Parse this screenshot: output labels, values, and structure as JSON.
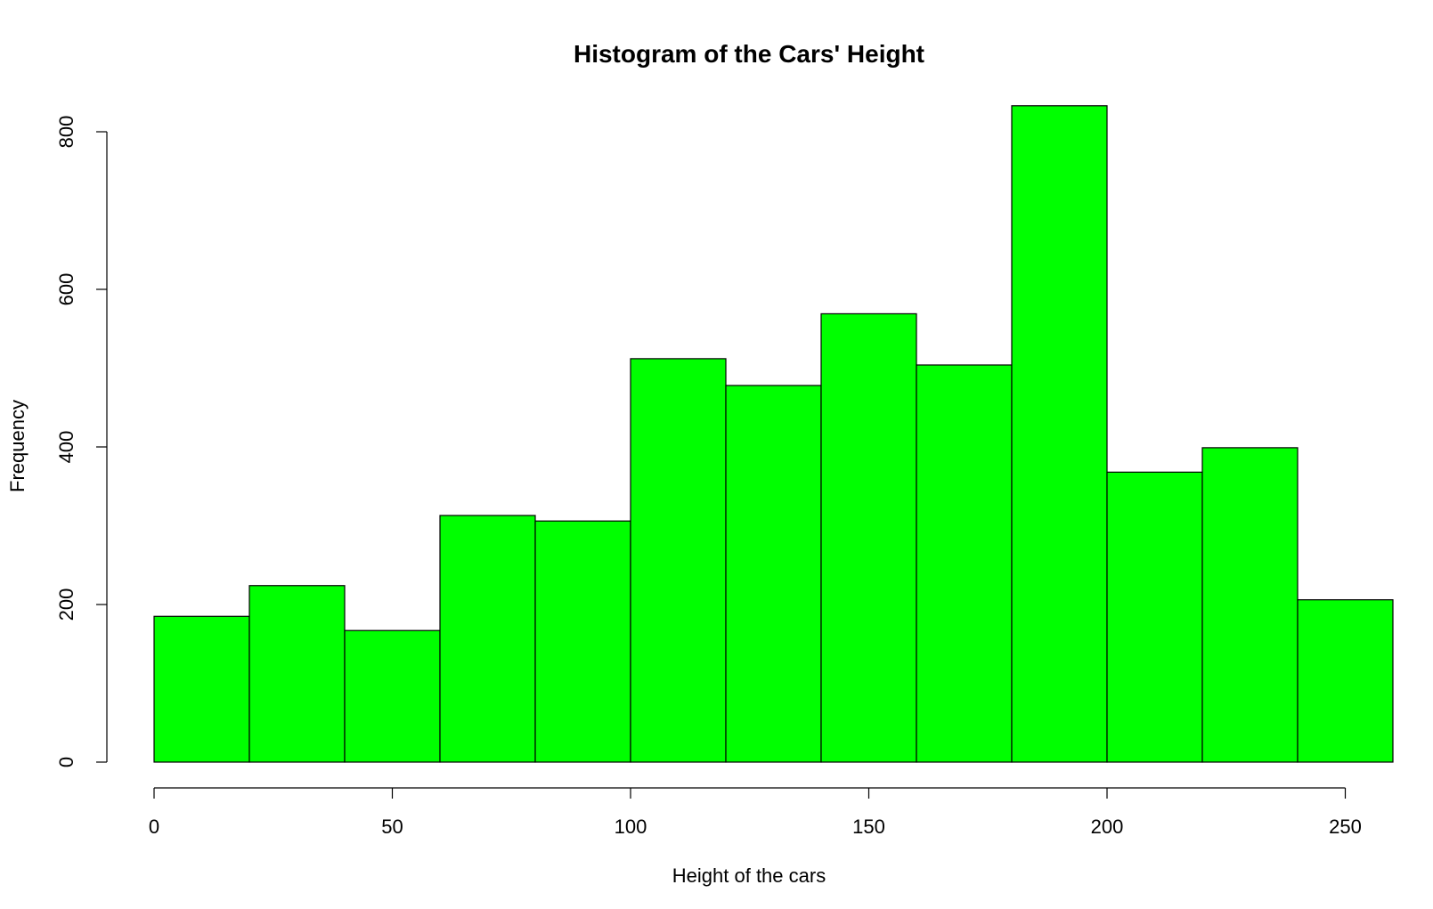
{
  "chart_data": {
    "type": "bar",
    "title": "Histogram of the Cars' Height",
    "xlabel": "Height of the cars",
    "ylabel": "Frequency",
    "bar_color": "#00ff00",
    "border_color": "#000000",
    "bins": [
      {
        "start": 0,
        "end": 20,
        "value": 185
      },
      {
        "start": 20,
        "end": 40,
        "value": 224
      },
      {
        "start": 40,
        "end": 60,
        "value": 167
      },
      {
        "start": 60,
        "end": 80,
        "value": 313
      },
      {
        "start": 80,
        "end": 100,
        "value": 306
      },
      {
        "start": 100,
        "end": 120,
        "value": 512
      },
      {
        "start": 120,
        "end": 140,
        "value": 478
      },
      {
        "start": 140,
        "end": 160,
        "value": 569
      },
      {
        "start": 160,
        "end": 180,
        "value": 504
      },
      {
        "start": 180,
        "end": 200,
        "value": 833
      },
      {
        "start": 200,
        "end": 220,
        "value": 368
      },
      {
        "start": 220,
        "end": 240,
        "value": 399
      },
      {
        "start": 240,
        "end": 260,
        "value": 206
      }
    ],
    "xlim": [
      0,
      260
    ],
    "ylim": [
      0,
      833
    ],
    "x_ticks": [
      0,
      50,
      100,
      150,
      200,
      250
    ],
    "y_ticks": [
      0,
      200,
      400,
      600,
      800
    ],
    "grid": false,
    "legend": "none"
  }
}
